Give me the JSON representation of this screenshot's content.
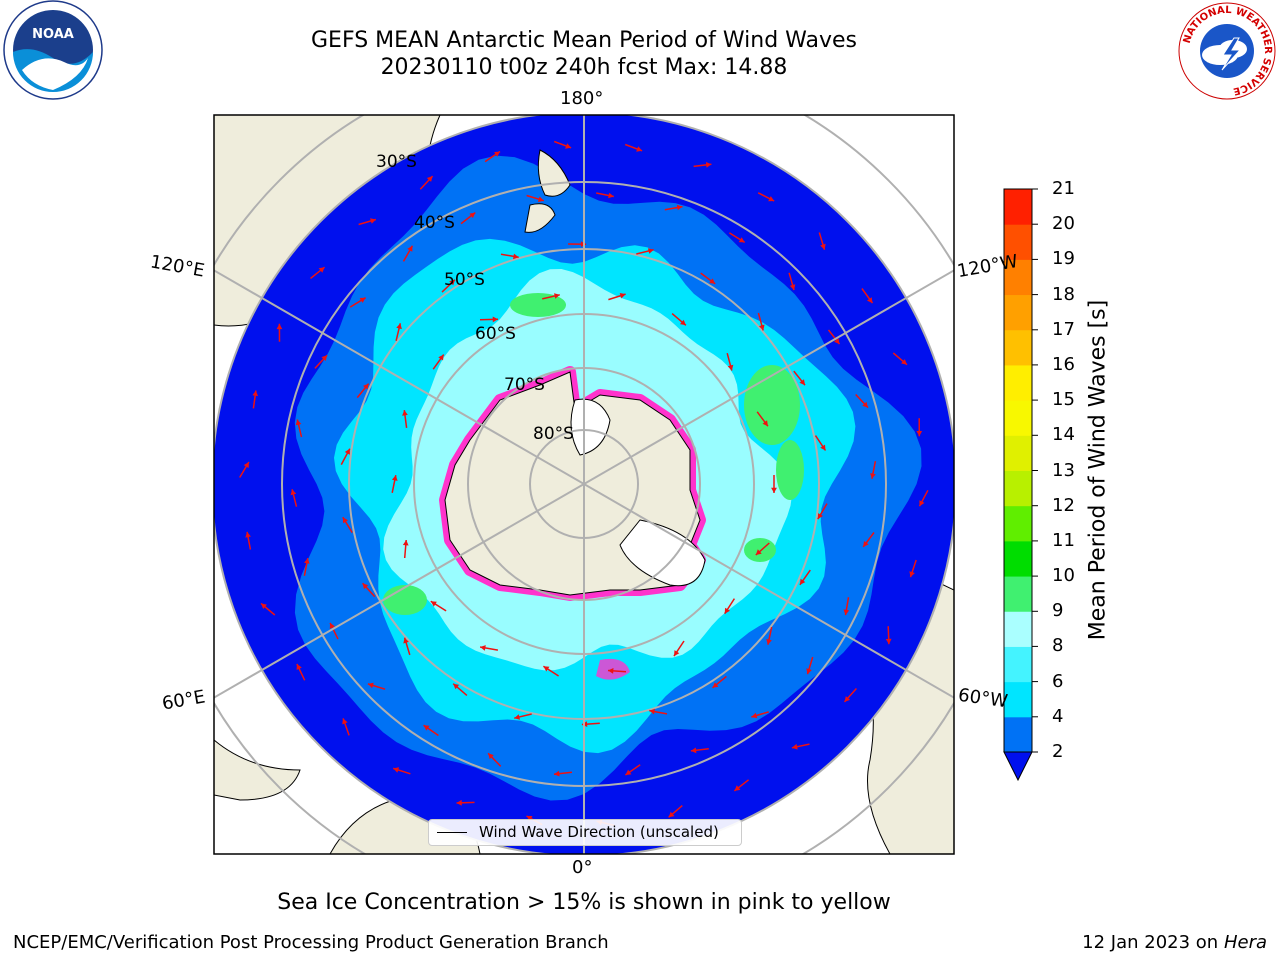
{
  "header": {
    "title_line1": "GEFS MEAN Antarctic Mean Period of Wind Waves",
    "title_line2": "20230110 t00z 240h fcst   Max: 14.88"
  },
  "logos": {
    "noaa_text": "NOAA",
    "nws_ring_text": "NATIONAL WEATHER SERVICE"
  },
  "map": {
    "longitude_labels": [
      "180°",
      "120°E",
      "120°W",
      "60°E",
      "60°W",
      "0°"
    ],
    "latitude_labels": [
      "30°S",
      "40°S",
      "50°S",
      "60°S",
      "70°S",
      "80°S"
    ],
    "legend_text": "Wind Wave Direction (unscaled)"
  },
  "colorbar": {
    "label": "Mean Period of Wind Waves [s]",
    "ticks": [
      "2",
      "4",
      "6",
      "8",
      "9",
      "10",
      "11",
      "12",
      "13",
      "14",
      "15",
      "16",
      "17",
      "18",
      "19",
      "20",
      "21"
    ],
    "colors": [
      "#0072f5",
      "#00e5ff",
      "#44f3ff",
      "#aaffff",
      "#40f070",
      "#00dd00",
      "#60ee00",
      "#b8f000",
      "#e0f000",
      "#f8f800",
      "#ffee00",
      "#ffc000",
      "#ffa000",
      "#ff8000",
      "#ff5000",
      "#ff2000"
    ],
    "under_color": "#0010ee"
  },
  "caption": "Sea Ice Concentration > 15% is shown in pink to yellow",
  "footer": {
    "left": "NCEP/EMC/Verification Post Processing Product Generation Branch",
    "right_prefix": "12 Jan 2023 on ",
    "right_host": "Hera"
  },
  "colors": {
    "land": "#efeddc",
    "ocean_deep": "#0010ee",
    "ocean_mid": "#0072f5",
    "ocean_cyan": "#00e5ff",
    "ocean_light": "#aaffff",
    "sea_ice": "#ff33cc",
    "arrows": "#ee1111"
  }
}
